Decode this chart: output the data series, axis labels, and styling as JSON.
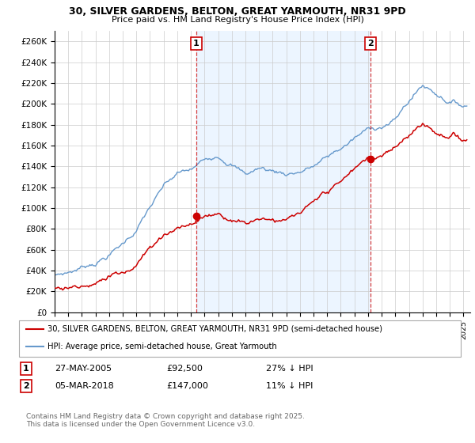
{
  "title1": "30, SILVER GARDENS, BELTON, GREAT YARMOUTH, NR31 9PD",
  "title2": "Price paid vs. HM Land Registry's House Price Index (HPI)",
  "ylim": [
    0,
    270000
  ],
  "yticks": [
    0,
    20000,
    40000,
    60000,
    80000,
    100000,
    120000,
    140000,
    160000,
    180000,
    200000,
    220000,
    240000,
    260000
  ],
  "ytick_labels": [
    "£0",
    "£20K",
    "£40K",
    "£60K",
    "£80K",
    "£100K",
    "£120K",
    "£140K",
    "£160K",
    "£180K",
    "£200K",
    "£220K",
    "£240K",
    "£260K"
  ],
  "xlim_start": 1995.0,
  "xlim_end": 2025.5,
  "vline1_x": 2005.38,
  "vline2_x": 2018.17,
  "sale1_price_val": 92500,
  "sale2_price_val": 147000,
  "sale1_date": "27-MAY-2005",
  "sale1_price": "£92,500",
  "sale1_hpi": "27% ↓ HPI",
  "sale2_date": "05-MAR-2018",
  "sale2_price": "£147,000",
  "sale2_hpi": "11% ↓ HPI",
  "legend_line1": "30, SILVER GARDENS, BELTON, GREAT YARMOUTH, NR31 9PD (semi-detached house)",
  "legend_line2": "HPI: Average price, semi-detached house, Great Yarmouth",
  "footer": "Contains HM Land Registry data © Crown copyright and database right 2025.\nThis data is licensed under the Open Government Licence v3.0.",
  "red_color": "#cc0000",
  "blue_color": "#6699cc",
  "blue_fill": "#ddeeff",
  "background": "#ffffff",
  "grid_color": "#cccccc",
  "hpi_base_years": [
    1995,
    1996,
    1997,
    1998,
    1999,
    2000,
    2001,
    2002,
    2003,
    2004,
    2005,
    2006,
    2007,
    2008,
    2009,
    2010,
    2011,
    2012,
    2013,
    2014,
    2015,
    2016,
    2017,
    2018,
    2019,
    2020,
    2021,
    2022,
    2023,
    2024,
    2025
  ],
  "hpi_base_values": [
    36000,
    39000,
    44000,
    50000,
    58000,
    68000,
    82000,
    103000,
    120000,
    130000,
    132000,
    140000,
    148000,
    143000,
    132000,
    138000,
    135000,
    133000,
    136000,
    141000,
    148000,
    156000,
    165000,
    172000,
    177000,
    182000,
    200000,
    215000,
    208000,
    202000,
    198000
  ]
}
